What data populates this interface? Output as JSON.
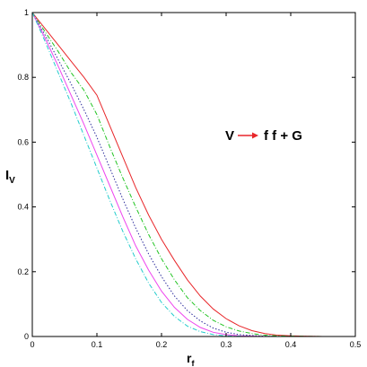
{
  "chart_data": {
    "type": "line",
    "xlabel": "r",
    "xlabel_sub": "f",
    "ylabel": "I",
    "ylabel_sub": "V",
    "xlim": [
      0,
      0.5
    ],
    "ylim": [
      0,
      1
    ],
    "xticks": [
      "0",
      "0.1",
      "0.2",
      "0.3",
      "0.4",
      "0.5"
    ],
    "yticks": [
      "0",
      "0.2",
      "0.4",
      "0.6",
      "0.8",
      "1"
    ],
    "grid": false,
    "annotation": {
      "left": "V",
      "right": "f f + G",
      "arrow_color": "#e8262a"
    },
    "series": [
      {
        "color": "#e8262a",
        "style": "solid",
        "x": [
          0,
          0.02,
          0.04,
          0.06,
          0.08,
          0.1,
          0.12,
          0.14,
          0.16,
          0.18,
          0.2,
          0.22,
          0.24,
          0.26,
          0.28,
          0.3,
          0.32,
          0.34,
          0.36,
          0.38,
          0.4,
          0.42,
          0.45,
          0.5
        ],
        "y": [
          1.0,
          0.95,
          0.9,
          0.85,
          0.8,
          0.745,
          0.65,
          0.555,
          0.46,
          0.375,
          0.3,
          0.235,
          0.175,
          0.125,
          0.085,
          0.055,
          0.033,
          0.018,
          0.009,
          0.004,
          0.002,
          0.001,
          0.0,
          0.0
        ]
      },
      {
        "color": "#22c422",
        "style": "dashdot",
        "x": [
          0,
          0.02,
          0.04,
          0.06,
          0.08,
          0.1,
          0.12,
          0.14,
          0.16,
          0.18,
          0.2,
          0.22,
          0.24,
          0.26,
          0.28,
          0.3,
          0.32,
          0.34,
          0.36,
          0.38,
          0.4,
          0.45,
          0.5
        ],
        "y": [
          1.0,
          0.94,
          0.88,
          0.815,
          0.76,
          0.685,
          0.585,
          0.49,
          0.4,
          0.315,
          0.24,
          0.175,
          0.12,
          0.08,
          0.05,
          0.03,
          0.017,
          0.009,
          0.004,
          0.002,
          0.001,
          0.0,
          0.0
        ]
      },
      {
        "color": "#2c2c9c",
        "style": "dotted",
        "x": [
          0,
          0.02,
          0.04,
          0.06,
          0.08,
          0.1,
          0.12,
          0.14,
          0.16,
          0.18,
          0.2,
          0.22,
          0.24,
          0.26,
          0.28,
          0.3,
          0.32,
          0.34,
          0.36,
          0.38,
          0.4,
          0.45,
          0.5
        ],
        "y": [
          1.0,
          0.93,
          0.855,
          0.78,
          0.7,
          0.615,
          0.52,
          0.425,
          0.335,
          0.255,
          0.185,
          0.125,
          0.08,
          0.048,
          0.026,
          0.013,
          0.006,
          0.003,
          0.001,
          0.0,
          0.0,
          0.0,
          0.0
        ]
      },
      {
        "color": "#ee44ee",
        "style": "solid",
        "x": [
          0,
          0.02,
          0.04,
          0.06,
          0.08,
          0.1,
          0.12,
          0.14,
          0.16,
          0.18,
          0.2,
          0.22,
          0.24,
          0.26,
          0.28,
          0.3,
          0.32,
          0.34,
          0.36,
          0.4,
          0.45,
          0.5
        ],
        "y": [
          1.0,
          0.92,
          0.835,
          0.745,
          0.655,
          0.56,
          0.465,
          0.37,
          0.28,
          0.205,
          0.14,
          0.09,
          0.053,
          0.028,
          0.013,
          0.006,
          0.002,
          0.001,
          0.0,
          0.0,
          0.0,
          0.0
        ]
      },
      {
        "color": "#22cccc",
        "style": "dashdot",
        "x": [
          0,
          0.02,
          0.04,
          0.06,
          0.08,
          0.1,
          0.12,
          0.14,
          0.16,
          0.18,
          0.2,
          0.22,
          0.24,
          0.26,
          0.28,
          0.3,
          0.32,
          0.34,
          0.36,
          0.4,
          0.45,
          0.5
        ],
        "y": [
          1.0,
          0.91,
          0.815,
          0.72,
          0.62,
          0.52,
          0.42,
          0.325,
          0.24,
          0.165,
          0.105,
          0.062,
          0.032,
          0.015,
          0.006,
          0.002,
          0.001,
          0.0,
          0.0,
          0.0,
          0.0,
          0.0
        ]
      }
    ]
  }
}
